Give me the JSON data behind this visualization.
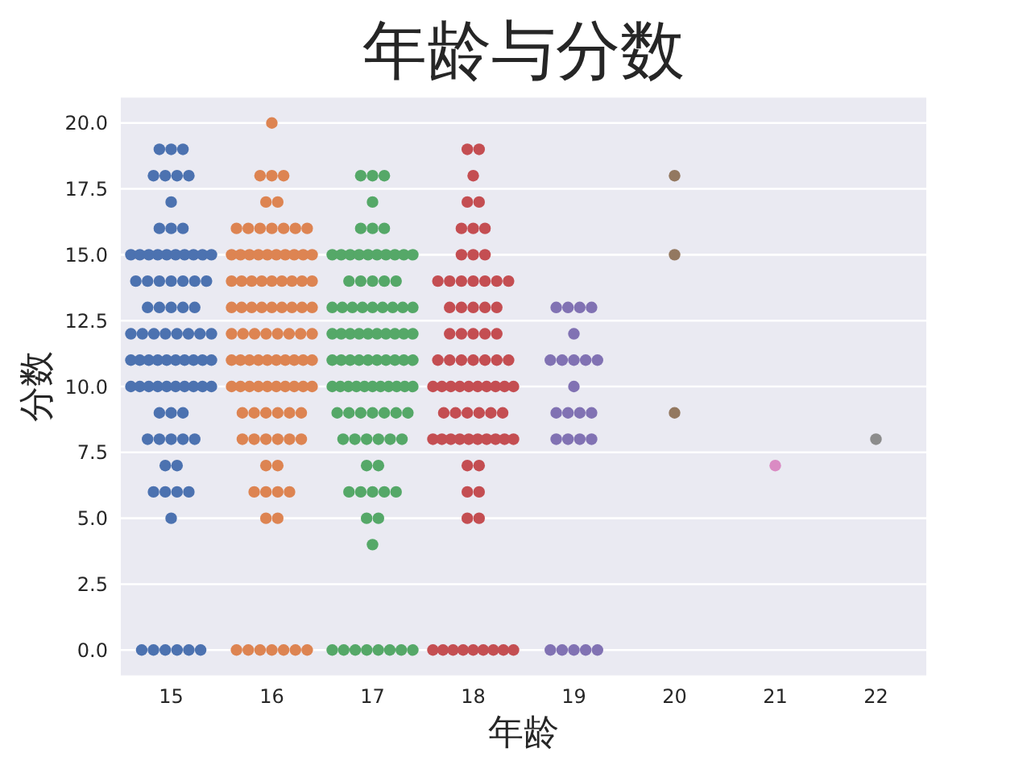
{
  "chart_data": {
    "type": "scatter",
    "title": "年龄与分数",
    "xlabel": "年龄",
    "ylabel": "分数",
    "categories": [
      "15",
      "16",
      "17",
      "18",
      "19",
      "20",
      "21",
      "22"
    ],
    "ylim": [
      -1,
      21
    ],
    "yticks": [
      {
        "value": 0,
        "label": "0.0"
      },
      {
        "value": 2.5,
        "label": "2.5"
      },
      {
        "value": 5,
        "label": "5.0"
      },
      {
        "value": 7.5,
        "label": "7.5"
      },
      {
        "value": 10,
        "label": "10.0"
      },
      {
        "value": 12.5,
        "label": "12.5"
      },
      {
        "value": 15,
        "label": "15.0"
      },
      {
        "value": 17.5,
        "label": "17.5"
      },
      {
        "value": 20,
        "label": "20.0"
      }
    ],
    "grid": "y",
    "marker": "circle",
    "series": [
      {
        "color": "#4c72b0",
        "x": [
          "15",
          "15",
          "15",
          "15",
          "15",
          "15",
          "15",
          "15",
          "15",
          "15",
          "15",
          "15",
          "15",
          "15",
          "15",
          "15",
          "15",
          "15",
          "15",
          "15",
          "15",
          "15",
          "15",
          "15",
          "15",
          "15",
          "15",
          "15",
          "15",
          "15",
          "15",
          "15",
          "15",
          "15",
          "15",
          "15",
          "15",
          "15",
          "15",
          "15",
          "15",
          "15",
          "15",
          "15",
          "15",
          "15",
          "15",
          "15",
          "15",
          "15",
          "15",
          "15",
          "15",
          "15",
          "15",
          "15",
          "15",
          "15",
          "15",
          "15",
          "15",
          "15",
          "15",
          "15",
          "15",
          "15",
          "15",
          "15",
          "15",
          "15",
          "15",
          "15",
          "15",
          "15",
          "15",
          "15",
          "15",
          "15",
          "15",
          "15",
          "15",
          "15"
        ],
        "values": [
          19,
          19,
          19,
          18,
          18,
          18,
          18,
          17,
          16,
          16,
          16,
          15,
          15,
          15,
          15,
          15,
          15,
          15,
          15,
          15,
          15,
          14,
          14,
          14,
          14,
          14,
          14,
          14,
          13,
          13,
          13,
          13,
          13,
          12,
          12,
          12,
          12,
          12,
          12,
          12,
          12,
          11,
          11,
          11,
          11,
          11,
          11,
          11,
          11,
          11,
          11,
          10,
          10,
          10,
          10,
          10,
          10,
          10,
          10,
          10,
          10,
          9,
          9,
          9,
          8,
          8,
          8,
          8,
          8,
          7,
          7,
          6,
          6,
          6,
          6,
          5,
          0,
          0,
          0,
          0,
          0,
          0
        ]
      },
      {
        "color": "#dd8452",
        "x": [
          "16",
          "16",
          "16",
          "16",
          "16",
          "16",
          "16",
          "16",
          "16",
          "16",
          "16",
          "16",
          "16",
          "16",
          "16",
          "16",
          "16",
          "16",
          "16",
          "16",
          "16",
          "16",
          "16",
          "16",
          "16",
          "16",
          "16",
          "16",
          "16",
          "16",
          "16",
          "16",
          "16",
          "16",
          "16",
          "16",
          "16",
          "16",
          "16",
          "16",
          "16",
          "16",
          "16",
          "16",
          "16",
          "16",
          "16",
          "16",
          "16",
          "16",
          "16",
          "16",
          "16",
          "16",
          "16",
          "16",
          "16",
          "16",
          "16",
          "16",
          "16",
          "16",
          "16",
          "16",
          "16",
          "16",
          "16",
          "16",
          "16",
          "16",
          "16",
          "16",
          "16",
          "16",
          "16",
          "16",
          "16",
          "16",
          "16",
          "16",
          "16",
          "16",
          "16",
          "16",
          "16",
          "16",
          "16",
          "16",
          "16",
          "16",
          "16",
          "16",
          "16",
          "16",
          "16",
          "16"
        ],
        "values": [
          20,
          18,
          18,
          18,
          17,
          17,
          16,
          16,
          16,
          16,
          16,
          16,
          16,
          15,
          15,
          15,
          15,
          15,
          15,
          15,
          15,
          15,
          15,
          14,
          14,
          14,
          14,
          14,
          14,
          14,
          14,
          14,
          13,
          13,
          13,
          13,
          13,
          13,
          13,
          13,
          13,
          12,
          12,
          12,
          12,
          12,
          12,
          12,
          12,
          11,
          11,
          11,
          11,
          11,
          11,
          11,
          11,
          11,
          11,
          10,
          10,
          10,
          10,
          10,
          10,
          10,
          10,
          10,
          10,
          9,
          9,
          9,
          9,
          9,
          9,
          8,
          8,
          8,
          8,
          8,
          8,
          7,
          7,
          6,
          6,
          6,
          6,
          5,
          5,
          0,
          0,
          0,
          0,
          0,
          0,
          0
        ]
      },
      {
        "color": "#55a868",
        "x": [
          "17",
          "17",
          "17",
          "17",
          "17",
          "17",
          "17",
          "17",
          "17",
          "17",
          "17",
          "17",
          "17",
          "17",
          "17",
          "17",
          "17",
          "17",
          "17",
          "17",
          "17",
          "17",
          "17",
          "17",
          "17",
          "17",
          "17",
          "17",
          "17",
          "17",
          "17",
          "17",
          "17",
          "17",
          "17",
          "17",
          "17",
          "17",
          "17",
          "17",
          "17",
          "17",
          "17",
          "17",
          "17",
          "17",
          "17",
          "17",
          "17",
          "17",
          "17",
          "17",
          "17",
          "17",
          "17",
          "17",
          "17",
          "17",
          "17",
          "17",
          "17",
          "17",
          "17",
          "17",
          "17",
          "17",
          "17",
          "17",
          "17",
          "17",
          "17",
          "17",
          "17",
          "17",
          "17",
          "17",
          "17",
          "17",
          "17",
          "17",
          "17",
          "17",
          "17",
          "17",
          "17",
          "17",
          "17",
          "17",
          "17",
          "17",
          "17",
          "17",
          "17"
        ],
        "values": [
          18,
          18,
          18,
          17,
          16,
          16,
          16,
          15,
          15,
          15,
          15,
          15,
          15,
          15,
          15,
          15,
          15,
          14,
          14,
          14,
          14,
          14,
          13,
          13,
          13,
          13,
          13,
          13,
          13,
          13,
          13,
          12,
          12,
          12,
          12,
          12,
          12,
          12,
          12,
          12,
          12,
          11,
          11,
          11,
          11,
          11,
          11,
          11,
          11,
          11,
          11,
          10,
          10,
          10,
          10,
          10,
          10,
          10,
          10,
          10,
          10,
          10,
          9,
          9,
          9,
          9,
          9,
          9,
          9,
          8,
          8,
          8,
          8,
          8,
          8,
          7,
          7,
          6,
          6,
          6,
          6,
          6,
          5,
          5,
          4,
          0,
          0,
          0,
          0,
          0,
          0,
          0,
          0
        ]
      },
      {
        "color": "#c44e52",
        "x": [
          "18",
          "18",
          "18",
          "18",
          "18",
          "18",
          "18",
          "18",
          "18",
          "18",
          "18",
          "18",
          "18",
          "18",
          "18",
          "18",
          "18",
          "18",
          "18",
          "18",
          "18",
          "18",
          "18",
          "18",
          "18",
          "18",
          "18",
          "18",
          "18",
          "18",
          "18",
          "18",
          "18",
          "18",
          "18",
          "18",
          "18",
          "18",
          "18",
          "18",
          "18",
          "18",
          "18",
          "18",
          "18",
          "18",
          "18",
          "18",
          "18",
          "18",
          "18",
          "18",
          "18",
          "18",
          "18",
          "18",
          "18",
          "18",
          "18",
          "18",
          "18",
          "18",
          "18",
          "18",
          "18",
          "18",
          "18",
          "18",
          "18",
          "18",
          "18",
          "18",
          "18",
          "18",
          "18",
          "18"
        ],
        "values": [
          19,
          19,
          18,
          17,
          17,
          16,
          16,
          16,
          15,
          15,
          15,
          14,
          14,
          14,
          14,
          14,
          14,
          14,
          13,
          13,
          13,
          13,
          13,
          12,
          12,
          12,
          12,
          12,
          11,
          11,
          11,
          11,
          11,
          11,
          11,
          10,
          10,
          10,
          10,
          10,
          10,
          10,
          10,
          10,
          10,
          9,
          9,
          9,
          9,
          9,
          9,
          8,
          8,
          8,
          8,
          8,
          8,
          8,
          8,
          8,
          8,
          7,
          7,
          6,
          6,
          5,
          5,
          0,
          0,
          0,
          0,
          0,
          0,
          0,
          0,
          0
        ]
      },
      {
        "color": "#8172b3",
        "x": [
          "19",
          "19",
          "19",
          "19",
          "19",
          "19",
          "19",
          "19",
          "19",
          "19",
          "19",
          "19",
          "19",
          "19",
          "19",
          "19",
          "19",
          "19",
          "19",
          "19",
          "19",
          "19",
          "19",
          "19"
        ],
        "values": [
          13,
          13,
          13,
          13,
          12,
          11,
          11,
          11,
          11,
          11,
          10,
          9,
          9,
          9,
          9,
          8,
          8,
          8,
          8,
          0,
          0,
          0,
          0,
          0
        ]
      },
      {
        "color": "#937860",
        "x": [
          "20",
          "20",
          "20"
        ],
        "values": [
          18,
          15,
          9
        ]
      },
      {
        "color": "#da8bc3",
        "x": [
          "21"
        ],
        "values": [
          7
        ]
      },
      {
        "color": "#8c8c8c",
        "x": [
          "22"
        ],
        "values": [
          8
        ]
      }
    ]
  }
}
